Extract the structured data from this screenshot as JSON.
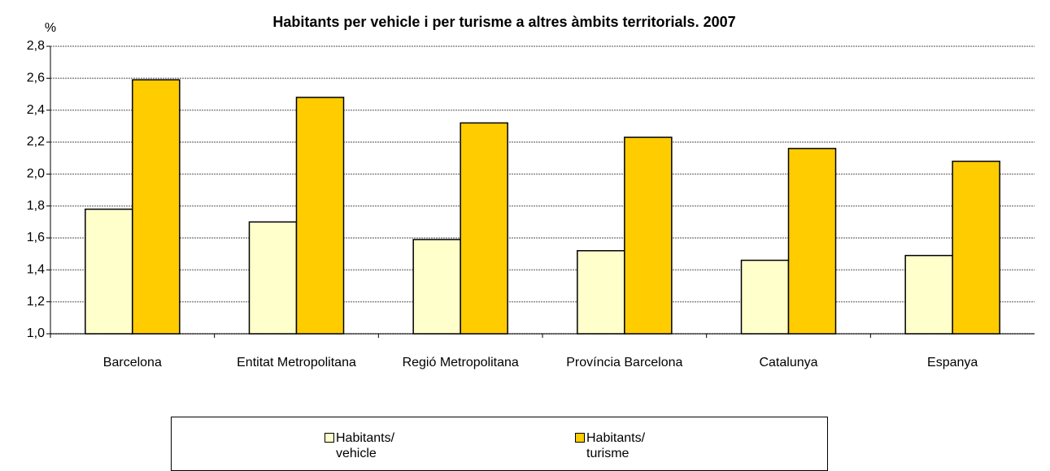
{
  "chart_data": {
    "type": "bar",
    "title": "Habitants per vehicle i per turisme a altres àmbits territorials. 2007",
    "y_label": "%",
    "categories": [
      "Barcelona",
      "Entitat Metropolitana",
      "Regió Metropolitana",
      "Província Barcelona",
      "Catalunya",
      "Espanya"
    ],
    "series": [
      {
        "name": "Habitants/ vehicle",
        "color": "#ffffcc",
        "values": [
          1.78,
          1.7,
          1.59,
          1.52,
          1.46,
          1.49
        ]
      },
      {
        "name": "Habitants/ turisme",
        "color": "#ffcc00",
        "values": [
          2.59,
          2.48,
          2.32,
          2.23,
          2.16,
          2.08
        ]
      }
    ],
    "ylim": [
      1.0,
      2.8
    ],
    "yticks": [
      {
        "value": 1.0,
        "label": "1,0"
      },
      {
        "value": 1.2,
        "label": "1,2"
      },
      {
        "value": 1.4,
        "label": "1,4"
      },
      {
        "value": 1.6,
        "label": "1,6"
      },
      {
        "value": 1.8,
        "label": "1,8"
      },
      {
        "value": 2.0,
        "label": "2,0"
      },
      {
        "value": 2.2,
        "label": "2,2"
      },
      {
        "value": 2.4,
        "label": "2,4"
      },
      {
        "value": 2.6,
        "label": "2,6"
      },
      {
        "value": 2.8,
        "label": "2,8"
      }
    ],
    "grid": true,
    "legend": "bottom"
  }
}
